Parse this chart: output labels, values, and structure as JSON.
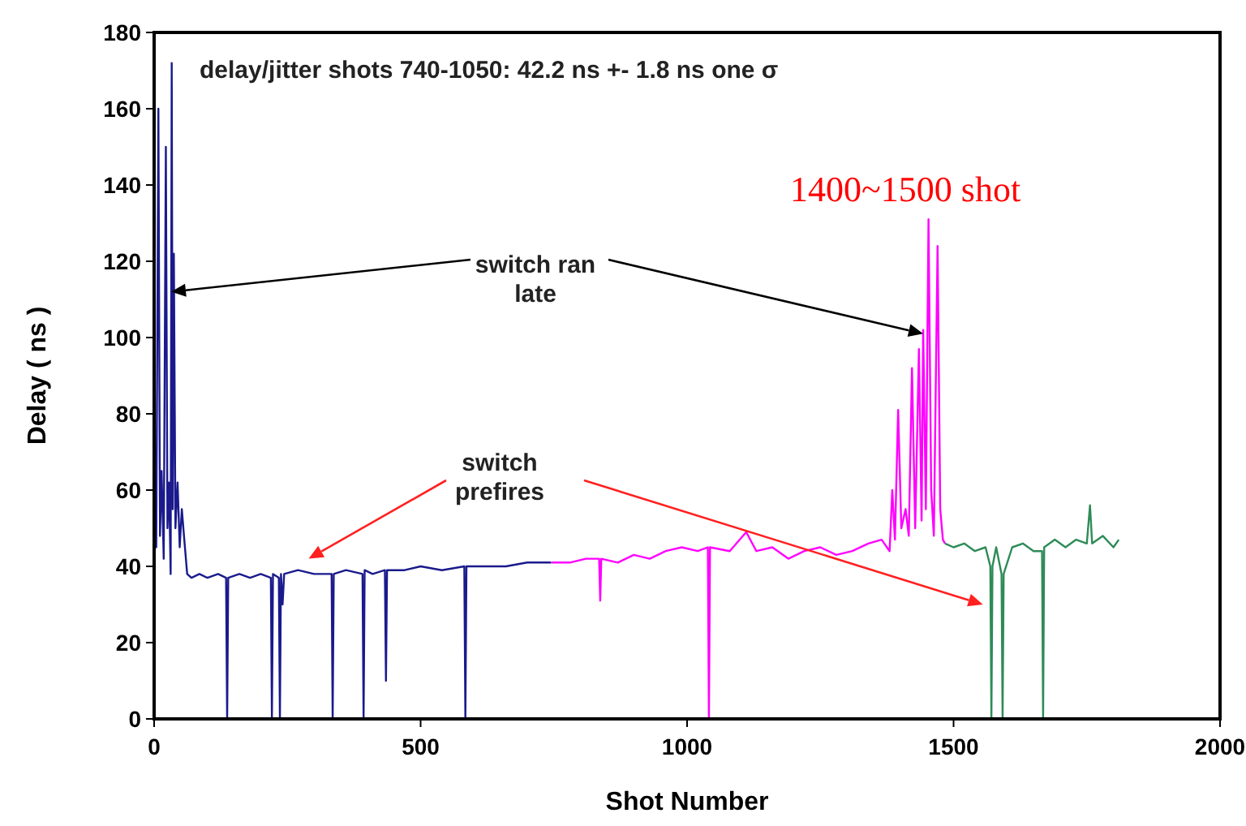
{
  "chart_data": {
    "type": "line",
    "xlabel": "Shot Number",
    "ylabel": "Delay  ( ns )",
    "xlim": [
      0,
      2000
    ],
    "xticks": [
      0,
      500,
      1000,
      1500,
      2000
    ],
    "ylim": [
      0,
      180
    ],
    "yticks": [
      0,
      20,
      40,
      60,
      80,
      100,
      120,
      140,
      160,
      180
    ],
    "grid": false,
    "marker": "none",
    "line_style": "solid",
    "annotations": [
      "delay/jitter  shots 740-1050:  42.2 ns +- 1.8 ns one σ",
      "switch ran late",
      "switch prefires",
      "1400~1500 shot"
    ],
    "series": [
      {
        "color": "#1a1a8c",
        "x": [
          0,
          4,
          8,
          11,
          14,
          18,
          22,
          25,
          28,
          31,
          33,
          35,
          37,
          40,
          44,
          48,
          52,
          56,
          62,
          70,
          85,
          100,
          120,
          135,
          137,
          139,
          160,
          180,
          200,
          219,
          221,
          223,
          234,
          236,
          238,
          241,
          244,
          270,
          300,
          333,
          335,
          337,
          360,
          391,
          393,
          395,
          410,
          433,
          435,
          437,
          470,
          500,
          540,
          582,
          584,
          586,
          620,
          660,
          700,
          745
        ],
        "values": [
          55,
          45,
          160,
          48,
          65,
          42,
          150,
          50,
          62,
          38,
          172,
          55,
          122,
          50,
          62,
          45,
          55,
          48,
          38,
          37,
          38,
          37,
          38,
          37,
          0,
          37,
          38,
          37,
          38,
          37,
          0,
          38,
          37,
          0,
          38,
          30,
          38,
          39,
          38,
          38,
          0,
          38,
          39,
          38,
          0,
          39,
          38,
          39,
          10,
          39,
          39,
          40,
          39,
          40,
          0,
          40,
          40,
          40,
          41,
          41
        ]
      },
      {
        "color": "#ff00ff",
        "x": [
          745,
          780,
          810,
          835,
          837,
          839,
          870,
          900,
          930,
          960,
          990,
          1020,
          1039,
          1041,
          1043,
          1080,
          1111,
          1130,
          1160,
          1190,
          1220,
          1250,
          1280,
          1310,
          1340,
          1365,
          1380,
          1385,
          1390,
          1396,
          1402,
          1410,
          1416,
          1422,
          1428,
          1435,
          1440,
          1443,
          1448,
          1453,
          1458,
          1463,
          1470,
          1475,
          1480,
          1484
        ],
        "values": [
          41,
          41,
          42,
          42,
          31,
          42,
          41,
          43,
          42,
          44,
          45,
          44,
          45,
          0,
          45,
          44,
          49,
          44,
          45,
          42,
          44,
          45,
          43,
          44,
          46,
          47,
          44,
          60,
          47,
          81,
          50,
          55,
          48,
          92,
          50,
          97,
          52,
          102,
          55,
          131,
          60,
          48,
          124,
          55,
          47,
          46
        ]
      },
      {
        "color": "#2e8b57",
        "x": [
          1484,
          1500,
          1520,
          1540,
          1560,
          1569,
          1571,
          1573,
          1580,
          1590,
          1592,
          1594,
          1610,
          1630,
          1650,
          1666,
          1668,
          1670,
          1690,
          1710,
          1730,
          1750,
          1756,
          1760,
          1780,
          1800,
          1810
        ],
        "values": [
          46,
          45,
          46,
          44,
          45,
          40,
          0,
          40,
          45,
          38,
          0,
          38,
          45,
          46,
          44,
          44,
          0,
          45,
          47,
          45,
          47,
          46,
          56,
          46,
          48,
          45,
          47
        ]
      }
    ]
  }
}
